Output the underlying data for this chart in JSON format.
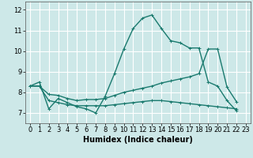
{
  "xlabel": "Humidex (Indice chaleur)",
  "background_color": "#cde8e8",
  "grid_color": "#b0d8d8",
  "line_color": "#1a7a6e",
  "xlim": [
    -0.5,
    23.5
  ],
  "ylim": [
    6.5,
    12.4
  ],
  "xticks": [
    0,
    1,
    2,
    3,
    4,
    5,
    6,
    7,
    8,
    9,
    10,
    11,
    12,
    13,
    14,
    15,
    16,
    17,
    18,
    19,
    20,
    21,
    22,
    23
  ],
  "yticks": [
    7,
    8,
    9,
    10,
    11,
    12
  ],
  "series": [
    {
      "x": [
        0,
        1,
        2,
        3,
        4,
        5,
        6,
        7,
        8,
        9,
        10,
        11,
        12,
        13,
        14,
        15,
        16,
        17,
        18,
        19,
        20,
        21,
        22
      ],
      "y": [
        8.3,
        8.5,
        7.2,
        7.7,
        7.5,
        7.3,
        7.2,
        7.0,
        7.8,
        8.9,
        10.1,
        11.1,
        11.6,
        11.75,
        11.1,
        10.5,
        10.4,
        10.15,
        10.15,
        8.5,
        8.3,
        7.6,
        7.1
      ]
    },
    {
      "x": [
        0,
        1,
        2,
        3,
        4,
        5,
        6,
        7,
        8,
        9,
        10,
        11,
        12,
        13,
        14,
        15,
        16,
        17,
        18,
        19,
        20,
        21,
        22
      ],
      "y": [
        8.3,
        8.3,
        7.9,
        7.85,
        7.7,
        7.6,
        7.65,
        7.65,
        7.7,
        7.85,
        8.0,
        8.1,
        8.2,
        8.3,
        8.45,
        8.55,
        8.65,
        8.75,
        8.9,
        10.1,
        10.1,
        8.25,
        7.55
      ]
    },
    {
      "x": [
        0,
        1,
        2,
        3,
        4,
        5,
        6,
        7,
        8,
        9,
        10,
        11,
        12,
        13,
        14,
        15,
        16,
        17,
        18,
        19,
        20,
        21,
        22
      ],
      "y": [
        8.3,
        8.3,
        7.6,
        7.5,
        7.4,
        7.35,
        7.35,
        7.35,
        7.35,
        7.4,
        7.45,
        7.5,
        7.55,
        7.6,
        7.6,
        7.55,
        7.5,
        7.45,
        7.4,
        7.35,
        7.3,
        7.25,
        7.2
      ]
    }
  ],
  "marker": "+",
  "markersize": 3,
  "linewidth": 1.0,
  "tick_labelsize": 6,
  "xlabel_fontsize": 7
}
